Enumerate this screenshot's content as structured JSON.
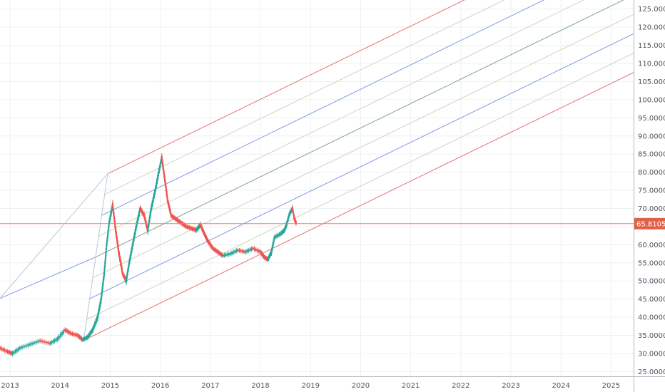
{
  "chart_data": {
    "type": "line",
    "instrument_type": "candlestick price chart with Andrews pitchfork",
    "x_range": [
      2012.8,
      2025.45
    ],
    "y_range": [
      23.7,
      127.5
    ],
    "y_scale": "linear",
    "grid": true,
    "x_ticks": [
      2013,
      2014,
      2015,
      2016,
      2017,
      2018,
      2019,
      2020,
      2021,
      2022,
      2023,
      2024,
      2025
    ],
    "y_ticks": [
      25,
      30,
      35,
      40,
      45,
      50,
      55,
      60,
      65,
      70,
      75,
      80,
      85,
      90,
      95,
      100,
      105,
      110,
      115,
      120,
      125
    ],
    "y_tick_labels": [
      "25.0000",
      "30.0000",
      "35.0000",
      "40.0000",
      "45.0000",
      "50.0000",
      "55.0000",
      "60.0000",
      "65.0000",
      "70.0000",
      "75.0000",
      "80.0000",
      "85.0000",
      "90.0000",
      "95.0000",
      "100.0000",
      "105.0000",
      "110.0000",
      "115.0000",
      "120.0000",
      "125.0000"
    ],
    "current_price": {
      "label": "65.8105",
      "value": 65.8105,
      "color": "#f57c5c"
    },
    "price_series": [
      [
        2012.8,
        31.5
      ],
      [
        2012.95,
        30.5
      ],
      [
        2013.05,
        30.0
      ],
      [
        2013.2,
        31.5
      ],
      [
        2013.4,
        32.5
      ],
      [
        2013.6,
        33.5
      ],
      [
        2013.8,
        32.8
      ],
      [
        2013.95,
        34.0
      ],
      [
        2014.1,
        36.5
      ],
      [
        2014.22,
        35.5
      ],
      [
        2014.35,
        35.0
      ],
      [
        2014.45,
        33.8
      ],
      [
        2014.55,
        34.5
      ],
      [
        2014.65,
        36.5
      ],
      [
        2014.75,
        40.0
      ],
      [
        2014.82,
        45.0
      ],
      [
        2014.88,
        52.0
      ],
      [
        2014.93,
        60.0
      ],
      [
        2014.98,
        66.0
      ],
      [
        2015.05,
        71.0
      ],
      [
        2015.1,
        65.0
      ],
      [
        2015.17,
        58.0
      ],
      [
        2015.25,
        52.0
      ],
      [
        2015.32,
        50.0
      ],
      [
        2015.38,
        55.0
      ],
      [
        2015.45,
        60.0
      ],
      [
        2015.52,
        65.0
      ],
      [
        2015.6,
        70.0
      ],
      [
        2015.68,
        68.0
      ],
      [
        2015.75,
        64.0
      ],
      [
        2015.82,
        70.0
      ],
      [
        2015.9,
        75.0
      ],
      [
        2015.97,
        80.0
      ],
      [
        2016.03,
        84.0
      ],
      [
        2016.08,
        79.0
      ],
      [
        2016.15,
        72.0
      ],
      [
        2016.22,
        68.0
      ],
      [
        2016.32,
        67.0
      ],
      [
        2016.42,
        66.0
      ],
      [
        2016.52,
        65.0
      ],
      [
        2016.62,
        64.5
      ],
      [
        2016.72,
        64.0
      ],
      [
        2016.8,
        65.5
      ],
      [
        2016.88,
        63.0
      ],
      [
        2016.95,
        61.0
      ],
      [
        2017.05,
        59.0
      ],
      [
        2017.15,
        58.0
      ],
      [
        2017.25,
        57.0
      ],
      [
        2017.4,
        57.5
      ],
      [
        2017.55,
        58.5
      ],
      [
        2017.7,
        58.0
      ],
      [
        2017.85,
        59.0
      ],
      [
        2018.0,
        58.0
      ],
      [
        2018.08,
        56.5
      ],
      [
        2018.15,
        56.0
      ],
      [
        2018.22,
        58.0
      ],
      [
        2018.28,
        62.0
      ],
      [
        2018.4,
        63.0
      ],
      [
        2018.48,
        64.0
      ],
      [
        2018.52,
        65.5
      ],
      [
        2018.58,
        68.5
      ],
      [
        2018.64,
        70.0
      ],
      [
        2018.68,
        67.0
      ],
      [
        2018.72,
        65.8
      ]
    ],
    "pitchfork": {
      "handle": [
        2012.8,
        45.2
      ],
      "pivot_high": [
        2014.95,
        79.6
      ],
      "pivot_low": [
        2014.47,
        33.6
      ],
      "median_slope_per_year": 6.73,
      "lines": [
        {
          "offset": 23.0,
          "color": "#e57373"
        },
        {
          "offset": 17.25,
          "color": "#c9d7b8"
        },
        {
          "offset": 11.5,
          "color": "#7f9ae6"
        },
        {
          "offset": 5.75,
          "color": "#c9d7b8"
        },
        {
          "offset": 0,
          "color": "#7fa58a"
        },
        {
          "offset": -5.75,
          "color": "#c9d7b8"
        },
        {
          "offset": -11.5,
          "color": "#7f9ae6"
        },
        {
          "offset": -17.25,
          "color": "#c9d7b8"
        },
        {
          "offset": -23.0,
          "color": "#e57373"
        }
      ]
    }
  },
  "colors": {
    "up": "#26a69a",
    "down": "#ef5350",
    "price_line": "#6e6e6e",
    "grid": "#eef0f3",
    "axis": "#b2b5be",
    "tag_bg": "#e0614a"
  }
}
